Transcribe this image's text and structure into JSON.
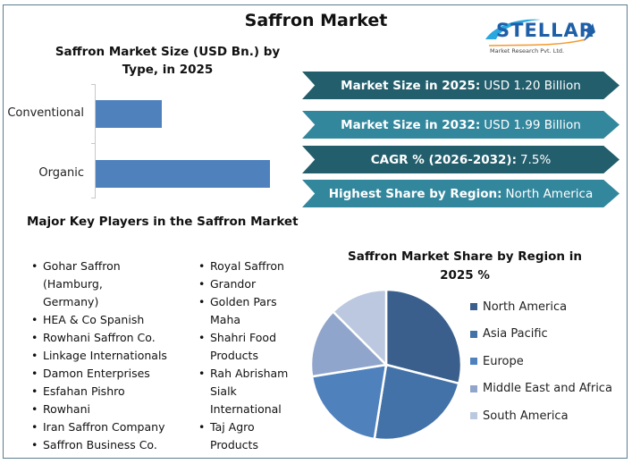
{
  "header": {
    "title": "Saffron Market",
    "logo": {
      "name": "STELLAR",
      "subtitle": "Market Research Pvt. Ltd."
    }
  },
  "kpis": [
    {
      "label": "Market Size in 2025:",
      "value": "USD 1.20 Billion",
      "color": "#225e6c"
    },
    {
      "label": "Market Size in 2032:",
      "value": "USD 1.99 Billion",
      "color": "#33879d"
    },
    {
      "label": "CAGR % (2026-2032):",
      "value": "7.5%",
      "color": "#225e6c"
    },
    {
      "label": "Highest Share by Region:",
      "value": "North America",
      "color": "#33879d"
    }
  ],
  "players": {
    "title": "Major Key Players in the Saffron Market",
    "column1": [
      "Gohar Saffron (Hamburg, Germany)",
      "HEA & Co Spanish",
      "Rowhani Saffron Co.",
      "Linkage Internationals",
      "Damon Enterprises",
      "Esfahan Pishro",
      "Rowhani",
      "Iran Saffron Company",
      "Saffron Business Co."
    ],
    "column2": [
      "Royal Saffron",
      "Grandor",
      "Golden Pars Maha",
      "Shahri Food Products",
      "Rah Abrisham Sialk International",
      "Taj Agro Products"
    ]
  },
  "chart_data": [
    {
      "type": "bar",
      "orientation": "horizontal",
      "title": "Saffron Market Size (USD Bn.) by Type, in 2025",
      "categories": [
        "Conventional",
        "Organic"
      ],
      "values": [
        0.33,
        0.87
      ],
      "color": "#4f81bd",
      "xlabel": "",
      "ylabel": "",
      "grid": false,
      "legend": "none"
    },
    {
      "type": "pie",
      "title": "Saffron Market Share by Region in 2025 %",
      "categories": [
        "North America",
        "Asia Pacific",
        "Europe",
        "Middle East and Africa",
        "South America"
      ],
      "values": [
        29,
        23.5,
        20,
        15,
        12.5
      ],
      "colors": [
        "#3a5f8c",
        "#4272a8",
        "#4f81bd",
        "#90a5cb",
        "#bcc8df"
      ],
      "legend_position": "right"
    }
  ]
}
